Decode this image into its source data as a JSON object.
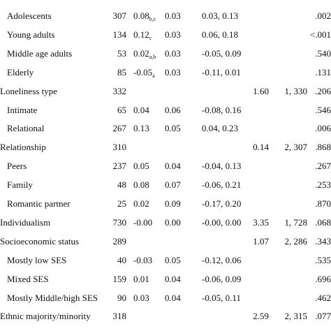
{
  "table": {
    "groups": [
      {
        "items": [
          {
            "label": "Adolescents",
            "k": "307",
            "estimate": "0.08",
            "estimate_sub": "b,c",
            "se": "0.03",
            "ci": "0.03,  0.13",
            "p": ".002"
          },
          {
            "label": "Young adults",
            "k": "134",
            "estimate": "0.12",
            "estimate_sub": "c",
            "se": "0.03",
            "ci": "0.06,  0.18",
            "p": "<.001"
          },
          {
            "label": "Middle age adults",
            "k": "53",
            "estimate": "0.02",
            "estimate_sub": "a,b",
            "se": "0.03",
            "ci": "-0.05,  0.09",
            "p": ".540"
          },
          {
            "label": "Elderly",
            "k": "85",
            "estimate": "-0.05",
            "estimate_sub": "a",
            "se": "0.03",
            "ci": "-0.11,  0.01",
            "p": ".131"
          }
        ]
      },
      {
        "label": "Loneliness type",
        "k": "332",
        "f": "1.60",
        "df": "1, 330",
        "p": ".206",
        "items": [
          {
            "label": "Intimate",
            "k": "65",
            "estimate": "0.04",
            "se": "0.06",
            "ci": "-0.08,  0.16",
            "p": ".546"
          },
          {
            "label": "Relational",
            "k": "267",
            "estimate": "0.13",
            "se": "0.05",
            "ci": "0.04,  0.23",
            "p": ".006"
          }
        ]
      },
      {
        "label": "Relationship",
        "k": "310",
        "f": "0.14",
        "df": "2, 307",
        "p": ".868",
        "items": [
          {
            "label": "Peers",
            "k": "237",
            "estimate": "0.05",
            "se": "0.04",
            "ci": "-0.04,  0.13",
            "p": ".267"
          },
          {
            "label": "Family",
            "k": "48",
            "estimate": "0.08",
            "se": "0.07",
            "ci": "-0.06,  0.21",
            "p": ".253"
          },
          {
            "label": "Romantic partner",
            "k": "25",
            "estimate": "0.02",
            "se": "0.09",
            "ci": "-0.17,  0.20",
            "p": ".870"
          }
        ]
      },
      {
        "label": "Individualism",
        "k": "730",
        "estimate": "-0.00",
        "se": "0.00",
        "ci": "-0.00,  0.00",
        "f": "3.35",
        "df": "1, 728",
        "p": ".068",
        "items": []
      },
      {
        "label": "Socioeconomic status",
        "k": "289",
        "f": "1.07",
        "df": "2, 286",
        "p": ".343",
        "items": [
          {
            "label": "Mostly low SES",
            "k": "40",
            "estimate": "-0.03",
            "se": "0.05",
            "ci": "-0.12,  0.06",
            "p": ".535"
          },
          {
            "label": "Mixed SES",
            "k": "159",
            "estimate": "0.01",
            "se": "0.04",
            "ci": "-0.06,  0.09",
            "p": ".696"
          },
          {
            "label": "Mostly Middle/high SES",
            "k": "90",
            "estimate": "0.03",
            "se": "0.04",
            "ci": "-0.05,  0.11",
            "p": ".462"
          }
        ]
      },
      {
        "label": "Ethnic majority/minority",
        "k": "318",
        "f": "2.59",
        "df": "2, 315",
        "p": ".077",
        "items": []
      }
    ]
  }
}
